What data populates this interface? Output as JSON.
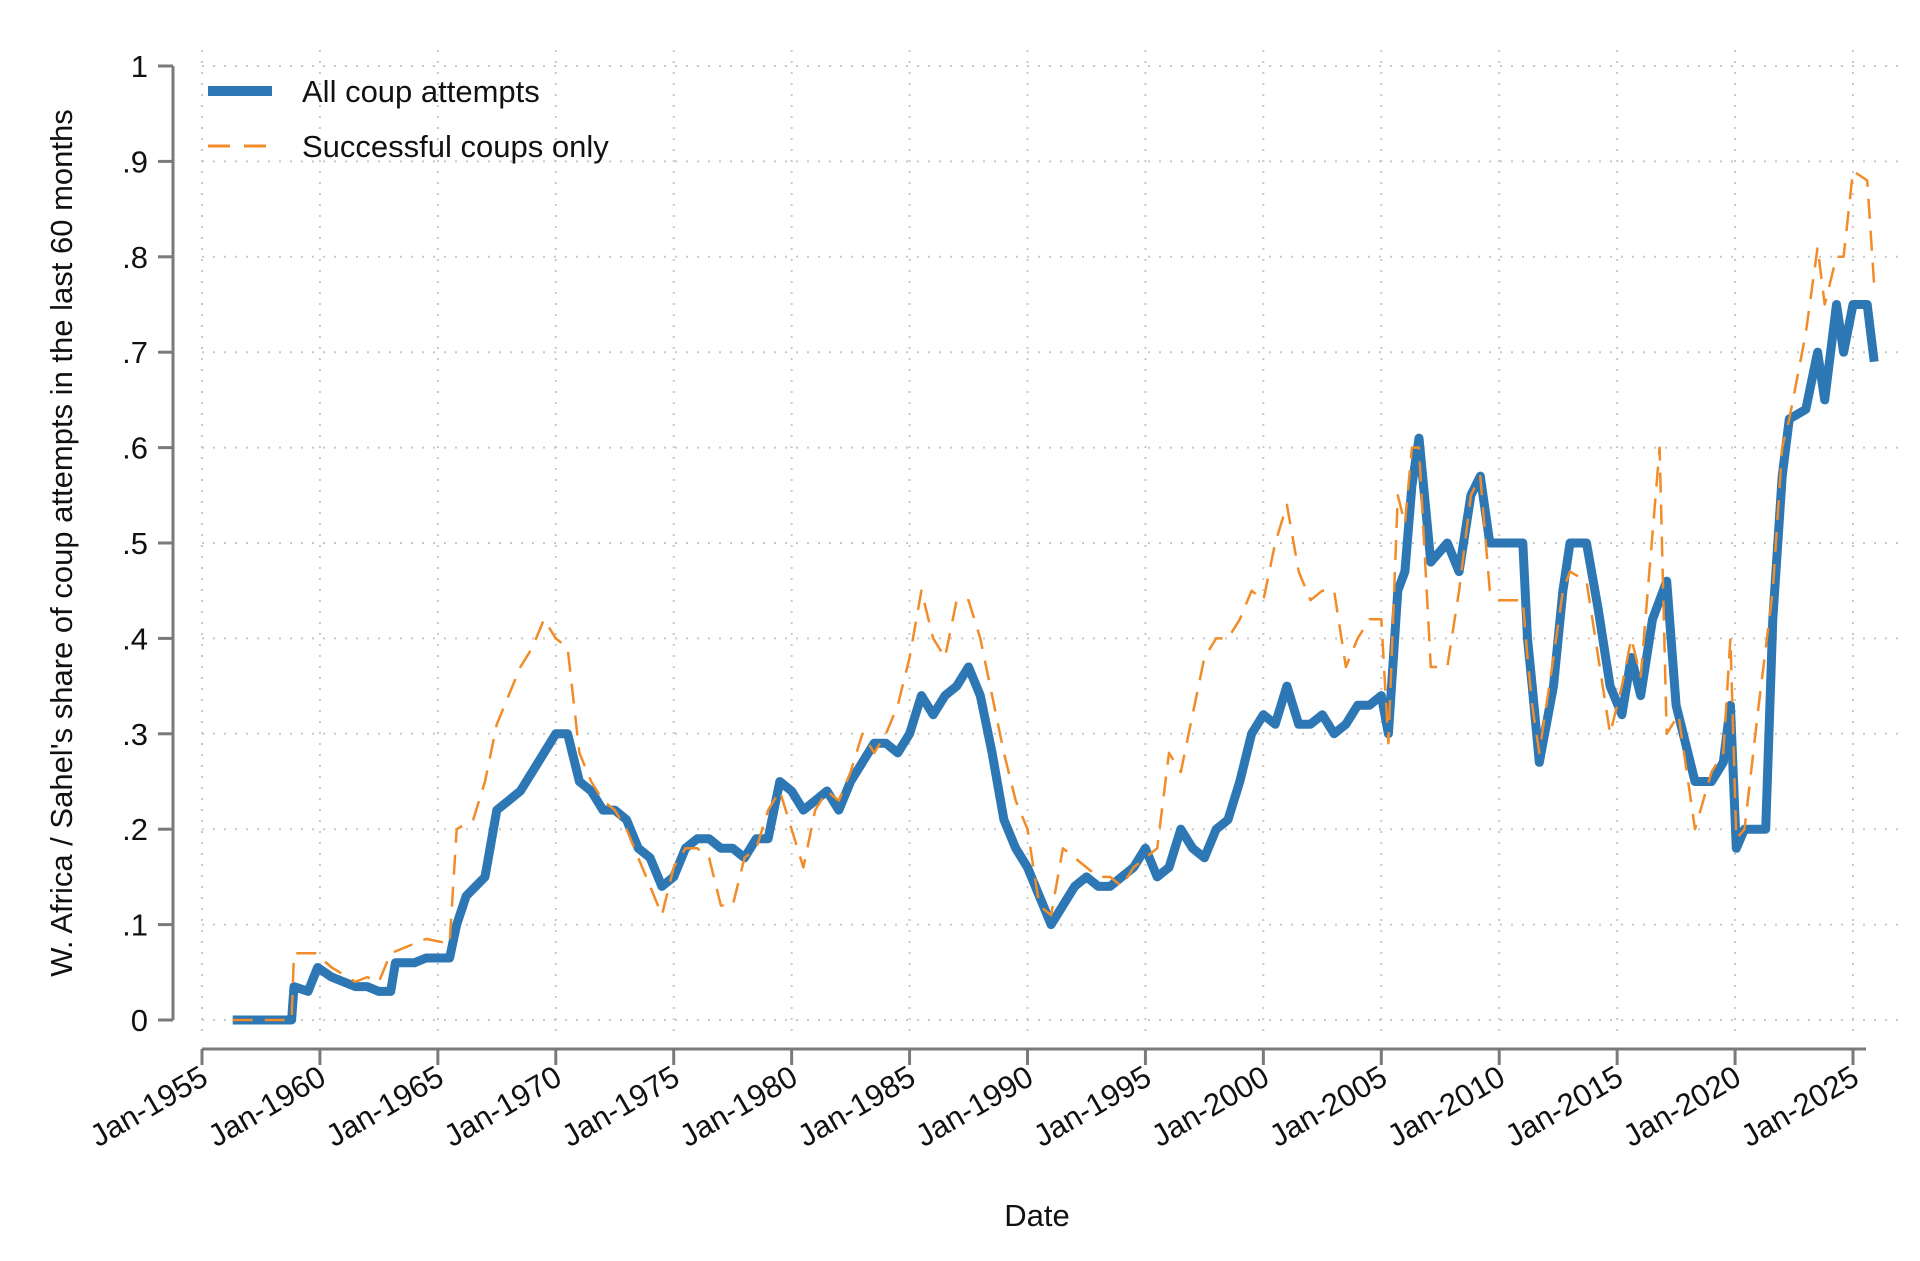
{
  "chart_data": {
    "type": "line",
    "title": "",
    "xlabel": "Date",
    "ylabel": "W. Africa / Sahel's share of coup attempts in the last 60 months",
    "xlim": [
      1955,
      2026.5
    ],
    "ylim": [
      0,
      1
    ],
    "grid": true,
    "legend_placement": "top-left",
    "x_ticks": [
      1955,
      1960,
      1965,
      1970,
      1975,
      1980,
      1985,
      1990,
      1995,
      2000,
      2005,
      2010,
      2015,
      2020,
      2025
    ],
    "x_tick_labels": [
      "Jan-1955",
      "Jan-1960",
      "Jan-1965",
      "Jan-1970",
      "Jan-1975",
      "Jan-1980",
      "Jan-1985",
      "Jan-1990",
      "Jan-1995",
      "Jan-2000",
      "Jan-2005",
      "Jan-2010",
      "Jan-2015",
      "Jan-2020",
      "Jan-2025"
    ],
    "y_ticks": [
      0,
      0.1,
      0.2,
      0.3,
      0.4,
      0.5,
      0.6,
      0.7,
      0.8,
      0.9,
      1
    ],
    "y_tick_labels": [
      "0",
      ".1",
      ".2",
      ".3",
      ".4",
      ".5",
      ".6",
      ".7",
      ".8",
      ".9",
      "1"
    ],
    "series": [
      {
        "name": "All coup attempts",
        "color": "#2c77b4",
        "style": "solid-thick",
        "points": [
          [
            1956.3,
            0
          ],
          [
            1958.8,
            0
          ],
          [
            1958.9,
            0.035
          ],
          [
            1959.5,
            0.03
          ],
          [
            1959.9,
            0.055
          ],
          [
            1960.5,
            0.045
          ],
          [
            1961,
            0.04
          ],
          [
            1961.5,
            0.035
          ],
          [
            1962,
            0.035
          ],
          [
            1962.5,
            0.03
          ],
          [
            1963,
            0.03
          ],
          [
            1963.2,
            0.06
          ],
          [
            1964,
            0.06
          ],
          [
            1964.5,
            0.065
          ],
          [
            1965.5,
            0.065
          ],
          [
            1965.8,
            0.1
          ],
          [
            1966.2,
            0.13
          ],
          [
            1967,
            0.15
          ],
          [
            1967.5,
            0.22
          ],
          [
            1968,
            0.23
          ],
          [
            1968.5,
            0.24
          ],
          [
            1969,
            0.26
          ],
          [
            1969.5,
            0.28
          ],
          [
            1970,
            0.3
          ],
          [
            1970.5,
            0.3
          ],
          [
            1971,
            0.25
          ],
          [
            1971.5,
            0.24
          ],
          [
            1972,
            0.22
          ],
          [
            1972.5,
            0.22
          ],
          [
            1973,
            0.21
          ],
          [
            1973.5,
            0.18
          ],
          [
            1974,
            0.17
          ],
          [
            1974.5,
            0.14
          ],
          [
            1975,
            0.15
          ],
          [
            1975.5,
            0.18
          ],
          [
            1976,
            0.19
          ],
          [
            1976.5,
            0.19
          ],
          [
            1977,
            0.18
          ],
          [
            1977.5,
            0.18
          ],
          [
            1978,
            0.17
          ],
          [
            1978.5,
            0.19
          ],
          [
            1979,
            0.19
          ],
          [
            1979.5,
            0.25
          ],
          [
            1980,
            0.24
          ],
          [
            1980.5,
            0.22
          ],
          [
            1981,
            0.23
          ],
          [
            1981.5,
            0.24
          ],
          [
            1982,
            0.22
          ],
          [
            1982.5,
            0.25
          ],
          [
            1983,
            0.27
          ],
          [
            1983.5,
            0.29
          ],
          [
            1984,
            0.29
          ],
          [
            1984.5,
            0.28
          ],
          [
            1985,
            0.3
          ],
          [
            1985.5,
            0.34
          ],
          [
            1986,
            0.32
          ],
          [
            1986.5,
            0.34
          ],
          [
            1987,
            0.35
          ],
          [
            1987.5,
            0.37
          ],
          [
            1988,
            0.34
          ],
          [
            1988.5,
            0.28
          ],
          [
            1989,
            0.21
          ],
          [
            1989.5,
            0.18
          ],
          [
            1990,
            0.16
          ],
          [
            1990.5,
            0.13
          ],
          [
            1991,
            0.1
          ],
          [
            1991.5,
            0.12
          ],
          [
            1992,
            0.14
          ],
          [
            1992.5,
            0.15
          ],
          [
            1993,
            0.14
          ],
          [
            1993.5,
            0.14
          ],
          [
            1994,
            0.15
          ],
          [
            1994.5,
            0.16
          ],
          [
            1995,
            0.18
          ],
          [
            1995.5,
            0.15
          ],
          [
            1996,
            0.16
          ],
          [
            1996.5,
            0.2
          ],
          [
            1997,
            0.18
          ],
          [
            1997.5,
            0.17
          ],
          [
            1998,
            0.2
          ],
          [
            1998.5,
            0.21
          ],
          [
            1999,
            0.25
          ],
          [
            1999.5,
            0.3
          ],
          [
            2000,
            0.32
          ],
          [
            2000.5,
            0.31
          ],
          [
            2001,
            0.35
          ],
          [
            2001.5,
            0.31
          ],
          [
            2002,
            0.31
          ],
          [
            2002.5,
            0.32
          ],
          [
            2003,
            0.3
          ],
          [
            2003.5,
            0.31
          ],
          [
            2004,
            0.33
          ],
          [
            2004.5,
            0.33
          ],
          [
            2005,
            0.34
          ],
          [
            2005.3,
            0.3
          ],
          [
            2005.7,
            0.45
          ],
          [
            2006,
            0.47
          ],
          [
            2006.3,
            0.56
          ],
          [
            2006.6,
            0.61
          ],
          [
            2007.1,
            0.48
          ],
          [
            2007.8,
            0.5
          ],
          [
            2008.3,
            0.47
          ],
          [
            2008.8,
            0.55
          ],
          [
            2009.2,
            0.57
          ],
          [
            2009.6,
            0.5
          ],
          [
            2010,
            0.5
          ],
          [
            2010.5,
            0.5
          ],
          [
            2011,
            0.5
          ],
          [
            2011.2,
            0.4
          ],
          [
            2011.4,
            0.35
          ],
          [
            2011.7,
            0.27
          ],
          [
            2012.3,
            0.35
          ],
          [
            2012.7,
            0.45
          ],
          [
            2013,
            0.5
          ],
          [
            2013.7,
            0.5
          ],
          [
            2014.2,
            0.43
          ],
          [
            2014.7,
            0.35
          ],
          [
            2015.2,
            0.32
          ],
          [
            2015.6,
            0.38
          ],
          [
            2016,
            0.34
          ],
          [
            2016.5,
            0.42
          ],
          [
            2017.1,
            0.46
          ],
          [
            2017.5,
            0.33
          ],
          [
            2018.3,
            0.25
          ],
          [
            2019,
            0.25
          ],
          [
            2019.5,
            0.27
          ],
          [
            2019.8,
            0.33
          ],
          [
            2020.05,
            0.18
          ],
          [
            2020.4,
            0.2
          ],
          [
            2021.3,
            0.2
          ],
          [
            2021.6,
            0.42
          ],
          [
            2022,
            0.57
          ],
          [
            2022.3,
            0.63
          ],
          [
            2023,
            0.64
          ],
          [
            2023.5,
            0.7
          ],
          [
            2023.8,
            0.65
          ],
          [
            2024.3,
            0.75
          ],
          [
            2024.6,
            0.7
          ],
          [
            2025,
            0.75
          ],
          [
            2025.6,
            0.75
          ],
          [
            2025.9,
            0.69
          ]
        ]
      },
      {
        "name": "Successful coups only",
        "color": "#f28c28",
        "style": "dashed",
        "points": [
          [
            1956.3,
            0
          ],
          [
            1958.8,
            0
          ],
          [
            1958.9,
            0.07
          ],
          [
            1959.8,
            0.07
          ],
          [
            1960.5,
            0.055
          ],
          [
            1961.5,
            0.04
          ],
          [
            1962,
            0.045
          ],
          [
            1962.5,
            0.04
          ],
          [
            1963,
            0.07
          ],
          [
            1964,
            0.08
          ],
          [
            1964.5,
            0.085
          ],
          [
            1965.5,
            0.08
          ],
          [
            1965.8,
            0.2
          ],
          [
            1966.5,
            0.21
          ],
          [
            1967,
            0.25
          ],
          [
            1967.5,
            0.31
          ],
          [
            1968,
            0.34
          ],
          [
            1968.5,
            0.37
          ],
          [
            1969,
            0.39
          ],
          [
            1969.5,
            0.42
          ],
          [
            1970,
            0.4
          ],
          [
            1970.5,
            0.39
          ],
          [
            1971,
            0.28
          ],
          [
            1971.5,
            0.25
          ],
          [
            1972,
            0.23
          ],
          [
            1972.5,
            0.22
          ],
          [
            1973,
            0.2
          ],
          [
            1973.5,
            0.17
          ],
          [
            1974,
            0.14
          ],
          [
            1974.5,
            0.11
          ],
          [
            1975,
            0.16
          ],
          [
            1975.5,
            0.18
          ],
          [
            1976,
            0.18
          ],
          [
            1976.5,
            0.17
          ],
          [
            1977,
            0.12
          ],
          [
            1977.5,
            0.12
          ],
          [
            1978,
            0.17
          ],
          [
            1978.5,
            0.18
          ],
          [
            1979,
            0.22
          ],
          [
            1979.5,
            0.24
          ],
          [
            1980,
            0.2
          ],
          [
            1980.5,
            0.16
          ],
          [
            1981,
            0.22
          ],
          [
            1981.5,
            0.24
          ],
          [
            1982,
            0.23
          ],
          [
            1982.5,
            0.26
          ],
          [
            1983,
            0.3
          ],
          [
            1983.5,
            0.28
          ],
          [
            1984,
            0.3
          ],
          [
            1984.5,
            0.33
          ],
          [
            1985,
            0.38
          ],
          [
            1985.5,
            0.45
          ],
          [
            1986,
            0.4
          ],
          [
            1986.5,
            0.38
          ],
          [
            1987,
            0.44
          ],
          [
            1987.5,
            0.44
          ],
          [
            1988,
            0.4
          ],
          [
            1988.5,
            0.34
          ],
          [
            1989,
            0.28
          ],
          [
            1989.5,
            0.23
          ],
          [
            1990,
            0.2
          ],
          [
            1990.5,
            0.12
          ],
          [
            1991,
            0.11
          ],
          [
            1991.5,
            0.18
          ],
          [
            1992,
            0.17
          ],
          [
            1992.5,
            0.16
          ],
          [
            1993,
            0.15
          ],
          [
            1993.5,
            0.15
          ],
          [
            1994,
            0.14
          ],
          [
            1994.5,
            0.16
          ],
          [
            1995,
            0.17
          ],
          [
            1995.5,
            0.18
          ],
          [
            1996,
            0.28
          ],
          [
            1996.5,
            0.26
          ],
          [
            1997,
            0.32
          ],
          [
            1997.5,
            0.38
          ],
          [
            1998,
            0.4
          ],
          [
            1998.5,
            0.4
          ],
          [
            1999,
            0.42
          ],
          [
            1999.5,
            0.45
          ],
          [
            2000,
            0.44
          ],
          [
            2000.5,
            0.5
          ],
          [
            2001,
            0.54
          ],
          [
            2001.5,
            0.47
          ],
          [
            2002,
            0.44
          ],
          [
            2002.5,
            0.45
          ],
          [
            2003,
            0.45
          ],
          [
            2003.5,
            0.37
          ],
          [
            2004,
            0.4
          ],
          [
            2004.5,
            0.42
          ],
          [
            2005,
            0.42
          ],
          [
            2005.3,
            0.29
          ],
          [
            2005.7,
            0.55
          ],
          [
            2006,
            0.52
          ],
          [
            2006.3,
            0.6
          ],
          [
            2006.6,
            0.6
          ],
          [
            2007.1,
            0.37
          ],
          [
            2007.8,
            0.37
          ],
          [
            2008.3,
            0.45
          ],
          [
            2008.8,
            0.55
          ],
          [
            2009.2,
            0.57
          ],
          [
            2009.6,
            0.45
          ],
          [
            2010,
            0.44
          ],
          [
            2010.5,
            0.44
          ],
          [
            2011,
            0.44
          ],
          [
            2011.2,
            0.38
          ],
          [
            2011.4,
            0.33
          ],
          [
            2011.7,
            0.28
          ],
          [
            2012.3,
            0.38
          ],
          [
            2012.7,
            0.45
          ],
          [
            2013,
            0.47
          ],
          [
            2013.7,
            0.46
          ],
          [
            2014.2,
            0.38
          ],
          [
            2014.7,
            0.3
          ],
          [
            2015.2,
            0.35
          ],
          [
            2015.6,
            0.4
          ],
          [
            2016,
            0.36
          ],
          [
            2016.8,
            0.6
          ],
          [
            2017.1,
            0.3
          ],
          [
            2017.6,
            0.32
          ],
          [
            2018.3,
            0.2
          ],
          [
            2019,
            0.26
          ],
          [
            2019.5,
            0.28
          ],
          [
            2019.8,
            0.4
          ],
          [
            2020.05,
            0.19
          ],
          [
            2020.4,
            0.2
          ],
          [
            2021,
            0.33
          ],
          [
            2021.6,
            0.45
          ],
          [
            2022,
            0.6
          ],
          [
            2022.3,
            0.63
          ],
          [
            2023,
            0.72
          ],
          [
            2023.5,
            0.81
          ],
          [
            2023.8,
            0.75
          ],
          [
            2024.3,
            0.8
          ],
          [
            2024.6,
            0.8
          ],
          [
            2025,
            0.89
          ],
          [
            2025.6,
            0.88
          ],
          [
            2025.9,
            0.77
          ]
        ]
      }
    ]
  }
}
